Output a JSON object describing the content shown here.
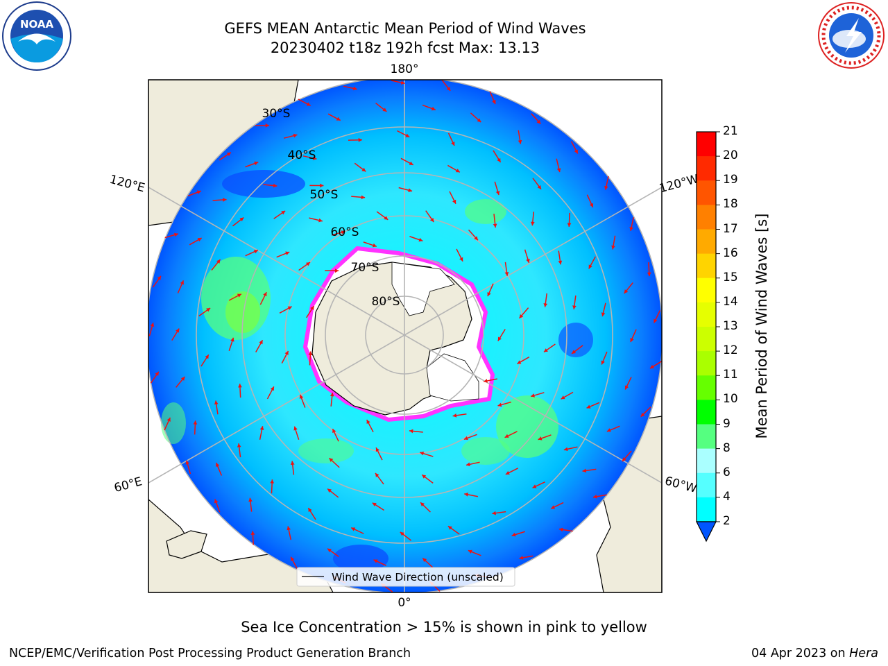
{
  "title_line1": "GEFS MEAN Antarctic Mean Period of Wind Waves",
  "title_line2": "20230402 t18z 192h fcst   Max: 13.13",
  "legend_label": "Wind Wave Direction (unscaled)",
  "sea_ice_note": "Sea Ice Concentration > 15% is shown in pink to yellow",
  "footer_left": "NCEP/EMC/Verification Post Processing Product Generation Branch",
  "footer_date": "04 Apr 2023 on ",
  "footer_machine": "Hera",
  "logos": {
    "left": "noara-logo",
    "right": "national-weather-service-logo",
    "noaa_text": "NOAA",
    "nws_text": "NATIONAL WEATHER SERVICE"
  },
  "map": {
    "projection": "south-polar-stereographic",
    "longitude_labels": [
      "180°",
      "120°E",
      "120°W",
      "60°E",
      "60°W",
      "0°"
    ],
    "latitude_labels": [
      "30°S",
      "40°S",
      "50°S",
      "60°S",
      "70°S",
      "80°S"
    ]
  },
  "colorbar": {
    "title": "Mean Period of Wind Waves [s]",
    "ticks": [
      "21",
      "20",
      "19",
      "18",
      "17",
      "16",
      "15",
      "14",
      "13",
      "12",
      "11",
      "10",
      "9",
      "8",
      "6",
      "4",
      "2"
    ],
    "colors": [
      "#ff0000",
      "#ff2a00",
      "#ff5500",
      "#ff8000",
      "#ffaa00",
      "#ffd400",
      "#ffff00",
      "#e6ff00",
      "#ccff00",
      "#aaff00",
      "#66ff00",
      "#00ff00",
      "#55ff80",
      "#aaffff",
      "#55ffff",
      "#00ffff",
      "#00aaff",
      "#0055ff"
    ]
  }
}
